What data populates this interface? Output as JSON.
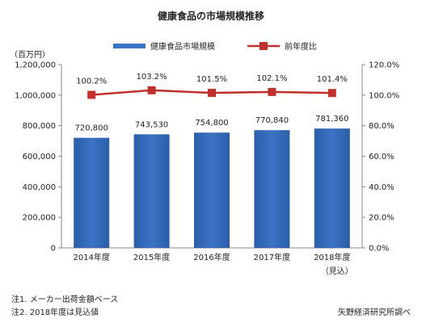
{
  "chart_data": {
    "type": "bar",
    "title": "健康食品の市場規模推移",
    "y_unit": "（百万円）",
    "categories": [
      "2014年度",
      "2015年度",
      "2016年度",
      "2017年度",
      "2018年度"
    ],
    "category_sub": [
      "",
      "",
      "",
      "",
      "（見込）"
    ],
    "series": [
      {
        "name": "健康食品市場規模",
        "kind": "bar",
        "axis": "left",
        "values": [
          720800,
          743530,
          754800,
          770840,
          781360
        ],
        "labels": [
          "720,800",
          "743,530",
          "754,800",
          "770,840",
          "781,360"
        ],
        "color": "#3a74c4"
      },
      {
        "name": "前年度比",
        "kind": "line",
        "axis": "right",
        "values": [
          100.2,
          103.2,
          101.5,
          102.1,
          101.4
        ],
        "labels": [
          "100.2%",
          "103.2%",
          "101.5%",
          "102.1%",
          "101.4%"
        ],
        "color": "#c0302c"
      }
    ],
    "ylim_left": [
      0,
      1200000
    ],
    "yticks_left": [
      "0",
      "200,000",
      "400,000",
      "600,000",
      "800,000",
      "1,000,000",
      "1,200,000"
    ],
    "ylim_right": [
      0,
      120
    ],
    "yticks_right": [
      "0.0%",
      "20.0%",
      "40.0%",
      "60.0%",
      "80.0%",
      "100.0%",
      "120.0%"
    ],
    "legend_position": "top",
    "grid": false
  },
  "notes": {
    "note1": "注1. メーカー出荷金額ベース",
    "note2": "注2. 2018年度は見込値",
    "source": "矢野経済研究所調べ"
  }
}
